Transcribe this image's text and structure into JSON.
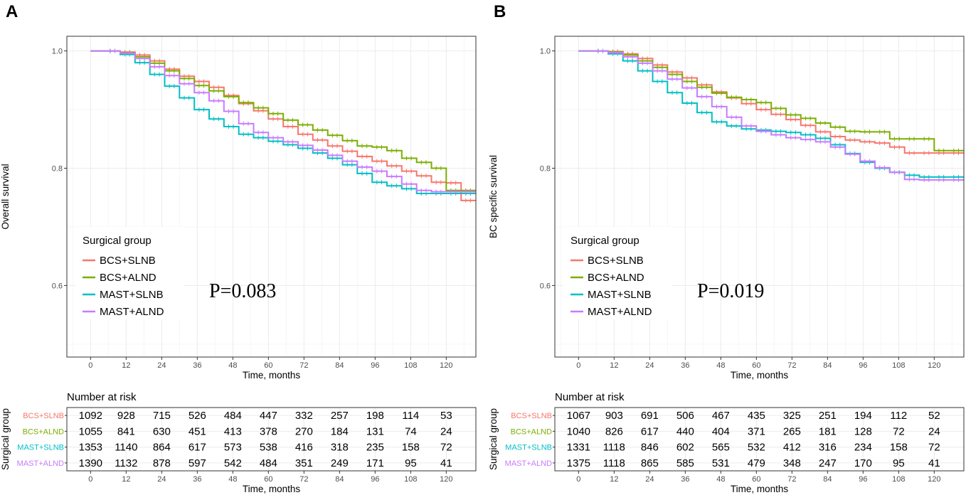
{
  "colors": {
    "BCS+SLNB": "#F8766D",
    "BCS+ALND": "#7CAE00",
    "MAST+SLNB": "#00BFC4",
    "MAST+ALND": "#C77CFF"
  },
  "chart_data": [
    {
      "type": "line",
      "panel_label": "A",
      "ylabel": "Overall survival",
      "xlabel": "Time, months",
      "xlim": [
        -8,
        130
      ],
      "ylim": [
        0.478,
        1.025
      ],
      "x_ticks": [
        0,
        12,
        24,
        36,
        48,
        60,
        72,
        84,
        96,
        108,
        120
      ],
      "y_ticks": [
        0.6,
        0.8,
        1.0
      ],
      "y_tick_labels": [
        "0.6",
        "0.8",
        "1.0"
      ],
      "legend_title": "Surgical group",
      "groups": [
        "BCS+SLNB",
        "BCS+ALND",
        "MAST+SLNB",
        "MAST+ALND"
      ],
      "p_value_text": "P=0.083",
      "series": [
        {
          "name": "BCS+SLNB",
          "x": [
            0,
            5,
            10,
            15,
            20,
            25,
            30,
            35,
            40,
            45,
            50,
            55,
            60,
            65,
            70,
            75,
            80,
            85,
            90,
            95,
            100,
            105,
            110,
            115,
            120,
            125,
            130
          ],
          "y": [
            1.0,
            1.0,
            0.998,
            0.993,
            0.983,
            0.969,
            0.957,
            0.948,
            0.938,
            0.924,
            0.91,
            0.898,
            0.884,
            0.871,
            0.858,
            0.848,
            0.838,
            0.829,
            0.82,
            0.812,
            0.804,
            0.795,
            0.787,
            0.776,
            0.775,
            0.745,
            0.745
          ]
        },
        {
          "name": "BCS+ALND",
          "x": [
            0,
            5,
            10,
            15,
            20,
            25,
            30,
            35,
            40,
            45,
            50,
            55,
            60,
            65,
            70,
            75,
            80,
            85,
            90,
            95,
            100,
            105,
            110,
            115,
            120,
            125,
            130
          ],
          "y": [
            1.0,
            1.0,
            0.997,
            0.99,
            0.979,
            0.966,
            0.953,
            0.941,
            0.932,
            0.922,
            0.912,
            0.903,
            0.893,
            0.882,
            0.874,
            0.865,
            0.856,
            0.847,
            0.838,
            0.836,
            0.83,
            0.817,
            0.81,
            0.8,
            0.762,
            0.762,
            0.762
          ]
        },
        {
          "name": "MAST+SLNB",
          "x": [
            0,
            5,
            10,
            15,
            20,
            25,
            30,
            35,
            40,
            45,
            50,
            55,
            60,
            65,
            70,
            75,
            80,
            85,
            90,
            95,
            100,
            105,
            110,
            115,
            120,
            125,
            130
          ],
          "y": [
            1.0,
            1.0,
            0.994,
            0.98,
            0.96,
            0.94,
            0.92,
            0.9,
            0.884,
            0.871,
            0.858,
            0.852,
            0.846,
            0.84,
            0.834,
            0.826,
            0.817,
            0.806,
            0.791,
            0.776,
            0.77,
            0.765,
            0.757,
            0.757,
            0.757,
            0.757,
            0.757
          ]
        },
        {
          "name": "MAST+ALND",
          "x": [
            0,
            5,
            10,
            15,
            20,
            25,
            30,
            35,
            40,
            45,
            50,
            55,
            60,
            65,
            70,
            75,
            80,
            85,
            90,
            95,
            100,
            105,
            110,
            115,
            120,
            125,
            130
          ],
          "y": [
            1.0,
            1.0,
            0.996,
            0.987,
            0.973,
            0.958,
            0.944,
            0.929,
            0.915,
            0.897,
            0.876,
            0.861,
            0.852,
            0.845,
            0.839,
            0.831,
            0.822,
            0.812,
            0.802,
            0.795,
            0.786,
            0.773,
            0.762,
            0.76,
            0.76,
            0.76,
            0.76
          ]
        }
      ],
      "risk_table": {
        "title": "Number at risk",
        "ylabel": "Surgical group",
        "xlabel": "Time, months",
        "rows": [
          {
            "group": "BCS+SLNB",
            "values": [
              1092,
              928,
              715,
              526,
              484,
              447,
              332,
              257,
              198,
              114,
              53
            ]
          },
          {
            "group": "BCS+ALND",
            "values": [
              1055,
              841,
              630,
              451,
              413,
              378,
              270,
              184,
              131,
              74,
              24
            ]
          },
          {
            "group": "MAST+SLNB",
            "values": [
              1353,
              1140,
              864,
              617,
              573,
              538,
              416,
              318,
              235,
              158,
              72
            ]
          },
          {
            "group": "MAST+ALND",
            "values": [
              1390,
              1132,
              878,
              597,
              542,
              484,
              351,
              249,
              171,
              95,
              41
            ]
          }
        ]
      }
    },
    {
      "type": "line",
      "panel_label": "B",
      "ylabel": "BC specific survival",
      "xlabel": "Time, months",
      "xlim": [
        -8,
        130
      ],
      "ylim": [
        0.478,
        1.025
      ],
      "x_ticks": [
        0,
        12,
        24,
        36,
        48,
        60,
        72,
        84,
        96,
        108,
        120
      ],
      "y_ticks": [
        0.6,
        0.8,
        1.0
      ],
      "y_tick_labels": [
        "0.6",
        "0.8",
        "1.0"
      ],
      "legend_title": "Surgical group",
      "groups": [
        "BCS+SLNB",
        "BCS+ALND",
        "MAST+SLNB",
        "MAST+ALND"
      ],
      "p_value_text": "P=0.019",
      "series": [
        {
          "name": "BCS+SLNB",
          "x": [
            0,
            5,
            10,
            15,
            20,
            25,
            30,
            35,
            40,
            45,
            50,
            55,
            60,
            65,
            70,
            75,
            80,
            85,
            90,
            95,
            100,
            105,
            110,
            115,
            120,
            125,
            130
          ],
          "y": [
            1.0,
            1.0,
            0.999,
            0.995,
            0.987,
            0.976,
            0.964,
            0.954,
            0.942,
            0.93,
            0.92,
            0.91,
            0.9,
            0.892,
            0.883,
            0.873,
            0.862,
            0.854,
            0.848,
            0.845,
            0.843,
            0.836,
            0.826,
            0.826,
            0.826,
            0.826,
            0.826
          ]
        },
        {
          "name": "BCS+ALND",
          "x": [
            0,
            5,
            10,
            15,
            20,
            25,
            30,
            35,
            40,
            45,
            50,
            55,
            60,
            65,
            70,
            75,
            80,
            85,
            90,
            95,
            100,
            105,
            110,
            115,
            120,
            125,
            130
          ],
          "y": [
            1.0,
            1.0,
            0.998,
            0.993,
            0.983,
            0.972,
            0.96,
            0.948,
            0.938,
            0.928,
            0.921,
            0.917,
            0.912,
            0.902,
            0.891,
            0.885,
            0.877,
            0.87,
            0.863,
            0.862,
            0.862,
            0.85,
            0.85,
            0.85,
            0.83,
            0.83,
            0.83
          ]
        },
        {
          "name": "MAST+SLNB",
          "x": [
            0,
            5,
            10,
            15,
            20,
            25,
            30,
            35,
            40,
            45,
            50,
            55,
            60,
            65,
            70,
            75,
            80,
            85,
            90,
            95,
            100,
            105,
            110,
            115,
            120,
            125,
            130
          ],
          "y": [
            1.0,
            1.0,
            0.995,
            0.983,
            0.966,
            0.948,
            0.929,
            0.911,
            0.895,
            0.879,
            0.872,
            0.867,
            0.865,
            0.863,
            0.861,
            0.857,
            0.851,
            0.84,
            0.825,
            0.81,
            0.8,
            0.793,
            0.788,
            0.785,
            0.785,
            0.785,
            0.785
          ]
        },
        {
          "name": "MAST+ALND",
          "x": [
            0,
            5,
            10,
            15,
            20,
            25,
            30,
            35,
            40,
            45,
            50,
            55,
            60,
            65,
            70,
            75,
            80,
            85,
            90,
            95,
            100,
            105,
            110,
            115,
            120,
            125,
            130
          ],
          "y": [
            1.0,
            1.0,
            0.997,
            0.99,
            0.979,
            0.966,
            0.952,
            0.937,
            0.922,
            0.905,
            0.887,
            0.872,
            0.863,
            0.857,
            0.852,
            0.849,
            0.845,
            0.836,
            0.824,
            0.812,
            0.801,
            0.793,
            0.781,
            0.78,
            0.78,
            0.78,
            0.78
          ]
        }
      ],
      "risk_table": {
        "title": "Number at risk",
        "ylabel": "Surgical group",
        "xlabel": "Time, months",
        "rows": [
          {
            "group": "BCS+SLNB",
            "values": [
              1067,
              903,
              691,
              506,
              467,
              435,
              325,
              251,
              194,
              112,
              52
            ]
          },
          {
            "group": "BCS+ALND",
            "values": [
              1040,
              826,
              617,
              440,
              404,
              371,
              265,
              181,
              128,
              72,
              24
            ]
          },
          {
            "group": "MAST+SLNB",
            "values": [
              1331,
              1118,
              846,
              602,
              565,
              532,
              412,
              316,
              234,
              158,
              72
            ]
          },
          {
            "group": "MAST+ALND",
            "values": [
              1375,
              1118,
              865,
              585,
              531,
              479,
              348,
              247,
              170,
              95,
              41
            ]
          }
        ]
      }
    }
  ]
}
